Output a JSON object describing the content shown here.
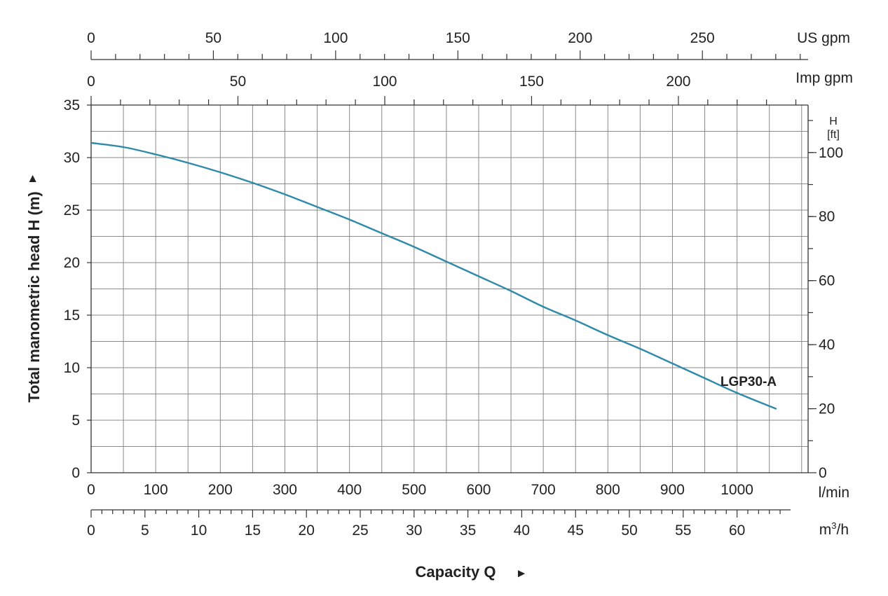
{
  "chart_data": {
    "type": "line",
    "title": "",
    "xlabel": "Capacity Q",
    "ylabel": "Total manometric head H (m)",
    "x_unit": "l/min",
    "xlim": [
      0,
      1110
    ],
    "ylim": [
      0,
      35
    ],
    "x_ticks": [
      "0",
      "100",
      "200",
      "300",
      "400",
      "500",
      "600",
      "700",
      "800",
      "900",
      "1000"
    ],
    "y_ticks": [
      "0",
      "5",
      "10",
      "15",
      "20",
      "25",
      "30",
      "35"
    ],
    "grid": true,
    "series": [
      {
        "name": "LGP30-A",
        "color": "#2e8aa8",
        "x": [
          0,
          50,
          100,
          150,
          200,
          250,
          300,
          350,
          400,
          450,
          500,
          550,
          600,
          650,
          700,
          750,
          800,
          850,
          900,
          950,
          1000,
          1060
        ],
        "y": [
          31.4,
          31.0,
          30.3,
          29.5,
          28.6,
          27.6,
          26.5,
          25.3,
          24.1,
          22.8,
          21.5,
          20.1,
          18.7,
          17.3,
          15.8,
          14.5,
          13.1,
          11.8,
          10.4,
          9.0,
          7.6,
          6.1
        ]
      }
    ],
    "secondary_axes": {
      "us_gpm": {
        "label": "US gpm",
        "ticks": [
          "0",
          "50",
          "100",
          "150",
          "200",
          "250"
        ]
      },
      "imp_gpm": {
        "label": "Imp gpm",
        "ticks": [
          "0",
          "50",
          "100",
          "150",
          "200"
        ]
      },
      "m3h": {
        "label_base": "m",
        "label_sup": "3",
        "label_tail": "/h",
        "ticks": [
          "0",
          "5",
          "10",
          "15",
          "20",
          "25",
          "30",
          "35",
          "40",
          "45",
          "50",
          "55",
          "60"
        ]
      },
      "head_ft": {
        "label_line1": "H",
        "label_line2": "[ft]",
        "ticks": [
          "0",
          "20",
          "40",
          "60",
          "80",
          "100"
        ]
      }
    },
    "arrow_symbol": "►",
    "colors": {
      "grid": "#8a8a8a",
      "axis": "#333333",
      "curve": "#2e8aa8"
    }
  }
}
